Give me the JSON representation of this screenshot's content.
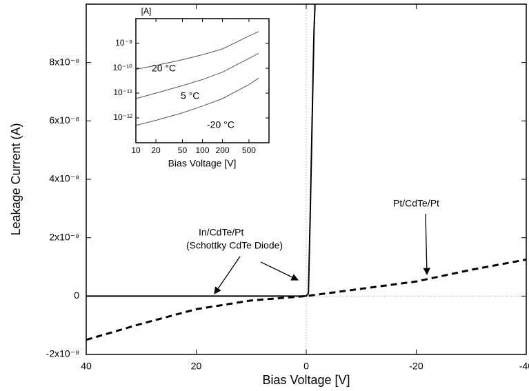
{
  "chart_data": [
    {
      "type": "line",
      "xlabel": "Bias Voltage [V]",
      "ylabel": "Leakage Current (A)",
      "xlim": [
        40,
        -40
      ],
      "xticks": [
        40,
        20,
        0,
        -20,
        -40
      ],
      "ylim": [
        -2e-08,
        1e-07
      ],
      "yticks": [
        {
          "value": -2e-08,
          "label": "-2x10⁻⁸"
        },
        0,
        {
          "value": 2e-08,
          "label": "2x10⁻⁸"
        },
        {
          "value": 4e-08,
          "label": "4x10⁻⁸"
        },
        {
          "value": 6e-08,
          "label": "6x10⁻⁸"
        },
        {
          "value": 8e-08,
          "label": "8x10⁻⁸"
        }
      ],
      "series": [
        {
          "name": "In/CdTe/Pt",
          "annotation": "(Schottky CdTe Diode)",
          "color": "#000000",
          "line_style": "solid",
          "x": [
            40,
            20,
            0,
            -0.4,
            -0.75,
            -1.4,
            -1.6
          ],
          "values": [
            0,
            0,
            0,
            1e-09,
            3e-08,
            9e-08,
            1e-07
          ]
        },
        {
          "name": "Pt/CdTe/Pt",
          "color": "#000000",
          "line_style": "dashed",
          "x": [
            40,
            30,
            20,
            10,
            0,
            -10,
            -20,
            -30,
            -40
          ],
          "values": [
            -1.5e-08,
            -9.5e-09,
            -4.5e-09,
            -1.5e-09,
            0,
            2.5e-09,
            5e-09,
            9e-09,
            1.25e-08
          ]
        }
      ]
    },
    {
      "type": "line",
      "xscale": "log",
      "yscale": "log",
      "xlabel": "Bias Voltage [V]",
      "ylabel": "[A]",
      "xlim": [
        10,
        1000
      ],
      "xticks": [
        10,
        20,
        50,
        100,
        200,
        500
      ],
      "ylim": [
        1e-13,
        1e-08
      ],
      "yticks": [
        {
          "value": 1e-12,
          "label": "10⁻¹²"
        },
        {
          "value": 1e-11,
          "label": "10⁻¹¹"
        },
        {
          "value": 1e-10,
          "label": "10⁻¹⁰"
        },
        {
          "value": 1e-09,
          "label": "10⁻⁹"
        }
      ],
      "series": [
        {
          "name": "20 °C",
          "color": "#555555",
          "line_style": "solid",
          "x": [
            10,
            20,
            50,
            100,
            200,
            500,
            700
          ],
          "values": [
            9e-11,
            1.3e-10,
            2.2e-10,
            3.5e-10,
            6e-10,
            2e-09,
            3e-09
          ]
        },
        {
          "name": "5 °C",
          "color": "#555555",
          "line_style": "solid",
          "x": [
            10,
            20,
            50,
            100,
            200,
            500,
            700
          ],
          "values": [
            6e-12,
            1e-11,
            2e-11,
            3.5e-11,
            7e-11,
            2.5e-10,
            4e-10
          ]
        },
        {
          "name": "-20 °C",
          "color": "#555555",
          "line_style": "solid",
          "x": [
            10,
            20,
            50,
            100,
            200,
            500,
            700
          ],
          "values": [
            5e-13,
            8e-13,
            1.6e-12,
            3e-12,
            6e-12,
            2.2e-11,
            4e-11
          ]
        }
      ]
    }
  ]
}
